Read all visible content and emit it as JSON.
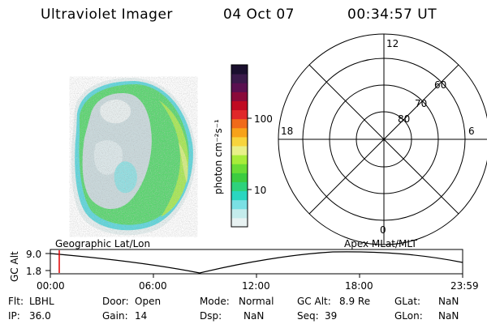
{
  "header": {
    "title": "Ultraviolet Imager",
    "date": "04 Oct 07",
    "time": "00:34:57 UT"
  },
  "colorbar": {
    "unit_label": "photon cm⁻²s⁻¹",
    "ticks": [
      "100",
      "10"
    ],
    "colors": [
      "#1a0f2e",
      "#3a1a4a",
      "#5a1050",
      "#8a0a3a",
      "#c00a22",
      "#e0282a",
      "#f06a1a",
      "#f7a21a",
      "#f7d43c",
      "#e8f088",
      "#a8ec3a",
      "#6adc36",
      "#3ccc40",
      "#2ed27c",
      "#2ad6c0",
      "#7ae0e4",
      "#c4ecec",
      "#e8f2f2"
    ]
  },
  "polar": {
    "mlt_labels": {
      "top": "12",
      "left": "18",
      "right": "6",
      "bottom": "0"
    },
    "lat_labels": [
      "60",
      "70",
      "80"
    ]
  },
  "timeline": {
    "left_label": "Geographic Lat/Lon",
    "right_label": "Apex MLat/MLT",
    "axis_label": "GC Alt",
    "y_ticks": [
      "9.0",
      "1.8"
    ],
    "x_ticks": [
      "00:00",
      "06:00",
      "12:00",
      "18:00",
      "23:59"
    ],
    "marker_color": "#e00000"
  },
  "info": {
    "flt_label": "Flt:",
    "flt_value": "LBHL",
    "ip_label": "IP:",
    "ip_value": "36.0",
    "door_label": "Door:",
    "door_value": "Open",
    "gain_label": "Gain:",
    "gain_value": "14",
    "mode_label": "Mode:",
    "mode_value": "Normal",
    "dsp_label": "Dsp:",
    "dsp_value": "NaN",
    "gcalt_label": "GC Alt:",
    "gcalt_value": "8.9 Re",
    "seq_label": "Seq:",
    "seq_value": "39",
    "glat_label": "GLat:",
    "glat_value": "NaN",
    "glon_label": "GLon:",
    "glon_value": "NaN"
  }
}
